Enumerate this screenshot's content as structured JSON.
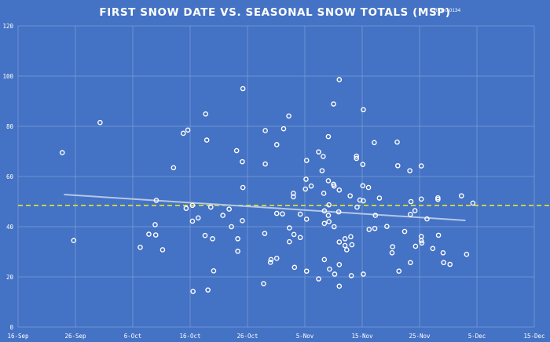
{
  "chart_data": {
    "type": "scatter",
    "title": "FIRST SNOW DATE VS. SEASONAL SNOW TOTALS (MSP)",
    "annotation": "R² = 0.0134",
    "xlabel": "",
    "ylabel": "",
    "x_unit": "days since 16-Sep",
    "x_ticks": [
      "16-Sep",
      "26-Sep",
      "6-Oct",
      "16-Oct",
      "26-Oct",
      "5-Nov",
      "15-Nov",
      "25-Nov",
      "5-Dec",
      "15-Dec"
    ],
    "xlim": [
      0,
      90
    ],
    "y_ticks": [
      0,
      20,
      40,
      60,
      80,
      100,
      120
    ],
    "ylim": [
      0,
      120
    ],
    "grid": true,
    "legend": "none",
    "marker": "hollow white circle",
    "colors": {
      "background": "#4472C4",
      "grid": "#7F9FD9",
      "marker": "#FFFFFF",
      "trendline": "#B4C7E7",
      "mean_line": "#E6E62E"
    },
    "mean_line": {
      "value": 48.5,
      "style": "dashed yellow"
    },
    "trendline": {
      "x": [
        8,
        78
      ],
      "y": [
        52.8,
        42.5
      ],
      "style": "solid light blue"
    },
    "points": [
      [
        7.7,
        69.5
      ],
      [
        9.7,
        34.5
      ],
      [
        14.3,
        81.5
      ],
      [
        21.3,
        31.8
      ],
      [
        22.8,
        37
      ],
      [
        23.9,
        40.8
      ],
      [
        24,
        36.7
      ],
      [
        24.1,
        50.5
      ],
      [
        25.2,
        30.8
      ],
      [
        27.1,
        63.5
      ],
      [
        28.8,
        77.2
      ],
      [
        29.6,
        78.5
      ],
      [
        29.3,
        47.3
      ],
      [
        30.4,
        48.5
      ],
      [
        30.4,
        42.2
      ],
      [
        30.5,
        14.2
      ],
      [
        31.4,
        43.5
      ],
      [
        32.6,
        36.5
      ],
      [
        32.7,
        84.9
      ],
      [
        32.9,
        74.5
      ],
      [
        33.1,
        14.8
      ],
      [
        33.6,
        47.8
      ],
      [
        33.9,
        35.2
      ],
      [
        34.1,
        22.4
      ],
      [
        35.7,
        44.5
      ],
      [
        36.8,
        47.0
      ],
      [
        37.2,
        40.0
      ],
      [
        38.1,
        70.3
      ],
      [
        38.3,
        35.2
      ],
      [
        38.3,
        30.2
      ],
      [
        39.1,
        65.9
      ],
      [
        39.2,
        55.6
      ],
      [
        39.2,
        95.0
      ],
      [
        39.1,
        42.4
      ],
      [
        43.1,
        78.3
      ],
      [
        43.1,
        65.0
      ],
      [
        43.0,
        37.3
      ],
      [
        42.8,
        17.3
      ],
      [
        44.0,
        25.8
      ],
      [
        44.1,
        26.9
      ],
      [
        45.1,
        27.4
      ],
      [
        45.1,
        45.3
      ],
      [
        45.1,
        72.7
      ],
      [
        46.1,
        45.1
      ],
      [
        46.3,
        79.0
      ],
      [
        47.2,
        84.1
      ],
      [
        47.3,
        39.5
      ],
      [
        47.3,
        34.0
      ],
      [
        48.0,
        51.9
      ],
      [
        48.0,
        53.3
      ],
      [
        48.1,
        36.9
      ],
      [
        48.2,
        23.8
      ],
      [
        49.2,
        35.7
      ],
      [
        49.2,
        45.0
      ],
      [
        50.1,
        55.0
      ],
      [
        50.2,
        58.9
      ],
      [
        50.3,
        66.4
      ],
      [
        50.3,
        43.0
      ],
      [
        50.3,
        22.3
      ],
      [
        51.1,
        56.2
      ],
      [
        52.4,
        69.8
      ],
      [
        52.4,
        19.2
      ],
      [
        53.0,
        62.3
      ],
      [
        53.2,
        68.0
      ],
      [
        53.3,
        53.3
      ],
      [
        53.4,
        46.3
      ],
      [
        53.4,
        41.3
      ],
      [
        53.4,
        26.9
      ],
      [
        54.1,
        75.9
      ],
      [
        54.1,
        58.3
      ],
      [
        54.2,
        48.7
      ],
      [
        54.1,
        44.5
      ],
      [
        54.2,
        42.0
      ],
      [
        54.3,
        23.1
      ],
      [
        55.0,
        88.9
      ],
      [
        55.0,
        56.9
      ],
      [
        55.1,
        56.2
      ],
      [
        55.1,
        40.0
      ],
      [
        55.2,
        21.1
      ],
      [
        55.9,
        45.9
      ],
      [
        56.0,
        54.6
      ],
      [
        56.0,
        98.6
      ],
      [
        56.0,
        33.9
      ],
      [
        56.0,
        24.9
      ],
      [
        56.0,
        16.3
      ],
      [
        57.0,
        35.2
      ],
      [
        57.0,
        32.5
      ],
      [
        57.3,
        30.8
      ],
      [
        57.9,
        52.3
      ],
      [
        58.0,
        36.0
      ],
      [
        58.2,
        32.8
      ],
      [
        58.1,
        20.5
      ],
      [
        59.0,
        68.1
      ],
      [
        59.0,
        67.2
      ],
      [
        59.1,
        47.8
      ],
      [
        59.6,
        50.6
      ],
      [
        60.1,
        64.8
      ],
      [
        60.2,
        86.6
      ],
      [
        60.1,
        56.3
      ],
      [
        60.2,
        50.3
      ],
      [
        60.2,
        21.1
      ],
      [
        61.1,
        55.6
      ],
      [
        61.2,
        38.9
      ],
      [
        62.1,
        73.5
      ],
      [
        62.3,
        44.5
      ],
      [
        62.2,
        39.3
      ],
      [
        63.0,
        51.4
      ],
      [
        64.3,
        40.1
      ],
      [
        65.3,
        32.0
      ],
      [
        65.2,
        29.6
      ],
      [
        66.1,
        73.7
      ],
      [
        66.2,
        64.3
      ],
      [
        66.4,
        22.3
      ],
      [
        67.4,
        38.1
      ],
      [
        68.3,
        62.3
      ],
      [
        68.5,
        50.0
      ],
      [
        68.4,
        44.9
      ],
      [
        68.4,
        25.7
      ],
      [
        69.2,
        46.4
      ],
      [
        69.3,
        32.2
      ],
      [
        70.3,
        64.2
      ],
      [
        70.3,
        51.0
      ],
      [
        70.3,
        36.1
      ],
      [
        70.3,
        34.4
      ],
      [
        70.4,
        33.5
      ],
      [
        71.3,
        43.1
      ],
      [
        72.3,
        31.3
      ],
      [
        73.2,
        50.9
      ],
      [
        73.2,
        51.5
      ],
      [
        73.3,
        36.6
      ],
      [
        74.1,
        29.6
      ],
      [
        74.2,
        25.7
      ],
      [
        75.3,
        25.0
      ],
      [
        77.3,
        52.3
      ],
      [
        78.2,
        29.0
      ],
      [
        79.3,
        49.4
      ]
    ]
  }
}
